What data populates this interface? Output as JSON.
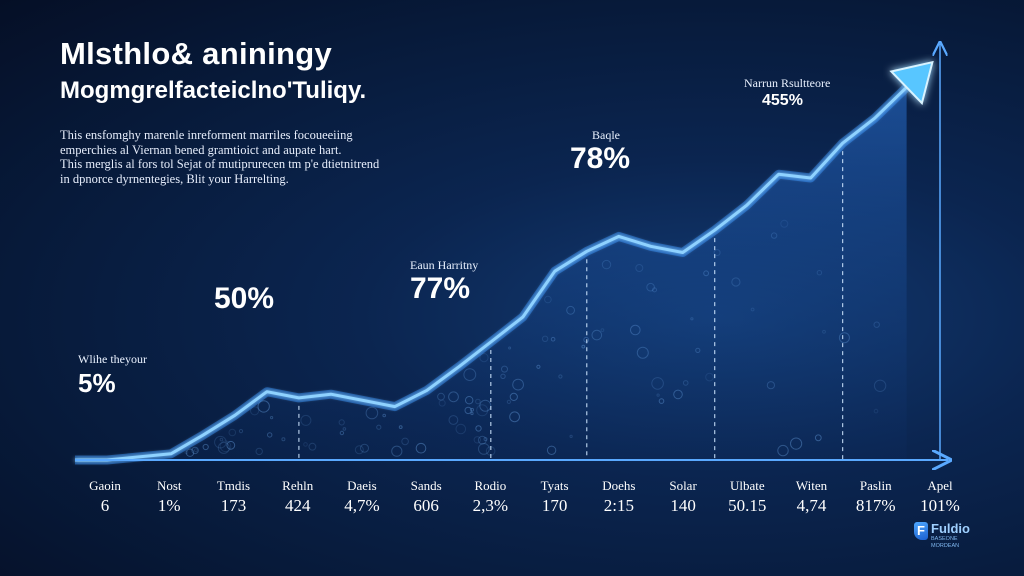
{
  "header": {
    "title": "Mlsthlo& aniningy",
    "subtitle": "Mogmgrelfacteiclno'Tuliqy."
  },
  "description": [
    "This ensfomghy marenle inreforment marriles focoueeiing",
    "emperchies al Viernan bened gramtioict and aupate hart.",
    "This merglis al fors tol Sejat of mutiprurecen tm p'e dtietnitrend",
    "in dpnorce dyrnentegies, Blit your Harrelting."
  ],
  "callouts": [
    {
      "label": "Wlihe theyour",
      "value": "5%"
    },
    {
      "label": "",
      "value": "50%"
    },
    {
      "label": "Eaun Harritny",
      "value": "77%"
    },
    {
      "label": "Baqle",
      "value": "78%"
    },
    {
      "label": "Narrun Rsultteore",
      "value": "455%"
    }
  ],
  "logo": {
    "mark": "F",
    "name": "Fuldio",
    "tagline": "BASEONE\nMORDEAN"
  },
  "colors": {
    "line": "#5fb8ff",
    "glow": "#2f8dff",
    "axis": "#5aa9ff",
    "background": "#071a3a"
  },
  "chart_data": {
    "type": "area",
    "title": "",
    "xlabel": "",
    "ylabel": "",
    "categories": [
      "Gaoin",
      "Nost",
      "Tmdis",
      "Rehln",
      "Daeis",
      "Sands",
      "Rodio",
      "Tyats",
      "Doehs",
      "Solar",
      "Ulbate",
      "Witen",
      "Paslin",
      "Apel"
    ],
    "tick_values": [
      "6",
      "1%",
      "173",
      "424",
      "4,7%",
      "606",
      "2,3%",
      "170",
      "2:15",
      "140",
      "50.15",
      "4,74",
      "817%",
      "101%"
    ],
    "x": [
      0,
      0.5,
      1.5,
      2,
      2.5,
      3,
      3.5,
      4,
      4.5,
      5,
      5.5,
      6,
      6.5,
      7,
      7.5,
      8,
      8.5,
      9,
      9.5,
      10,
      10.5,
      11,
      11.5,
      12,
      12.5,
      13
    ],
    "values": [
      0,
      0,
      5,
      20,
      36,
      55,
      50,
      53,
      48,
      43,
      56,
      75,
      95,
      115,
      152,
      168,
      180,
      172,
      167,
      185,
      205,
      230,
      227,
      255,
      275,
      300
    ],
    "arrow_end": [
      13.0,
      300
    ],
    "ylim": [
      0,
      330
    ],
    "xlim": [
      0,
      13.6
    ],
    "dashed_markers_x": [
      3.5,
      6.5,
      8.0,
      10.0,
      12.0
    ],
    "grid": false,
    "legend": "none"
  }
}
